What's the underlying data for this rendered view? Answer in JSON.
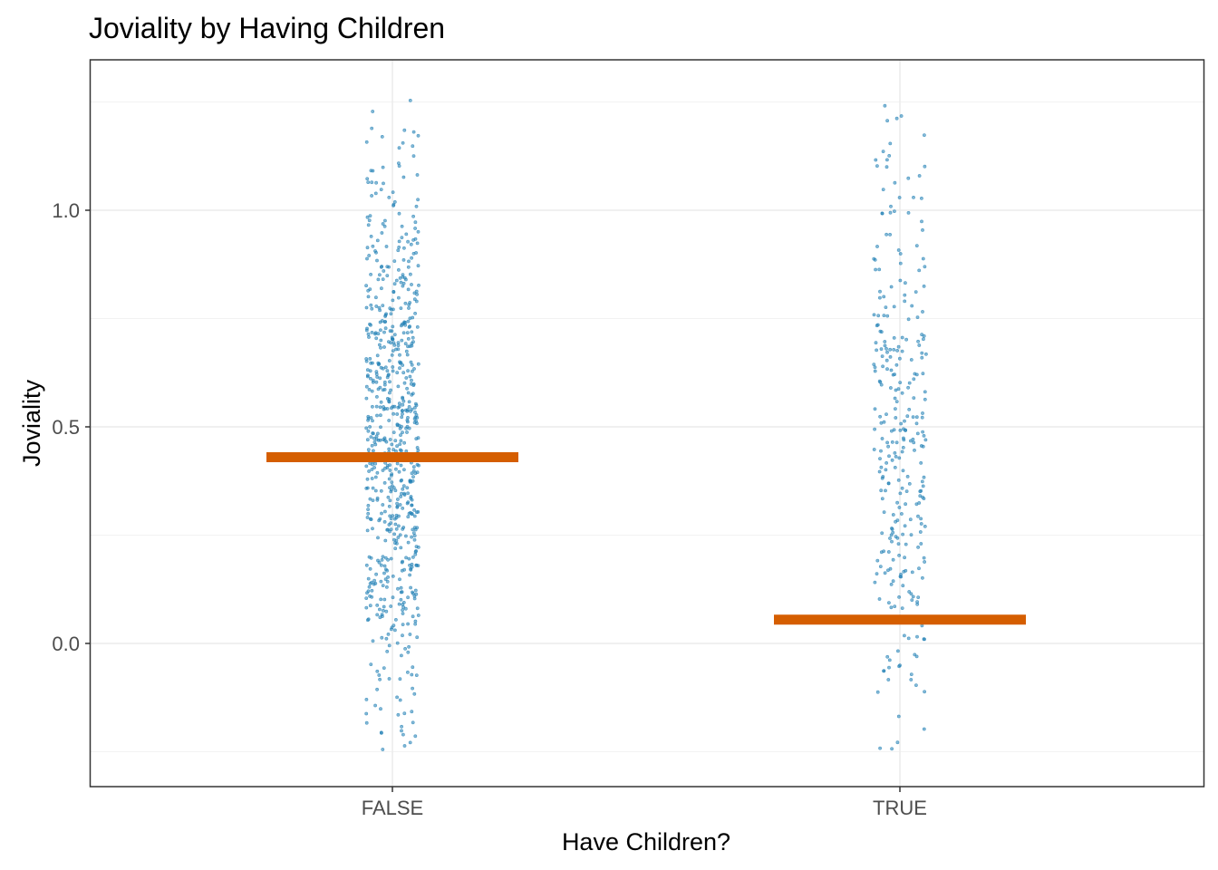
{
  "chart_data": {
    "type": "scatter",
    "title": "Joviality by Having Children",
    "xlabel": "Have Children?",
    "ylabel": "Joviality",
    "categories": [
      "FALSE",
      "TRUE"
    ],
    "ylim": [
      -0.26,
      1.29
    ],
    "y_ticks": [
      0.0,
      0.5,
      1.0
    ],
    "y_tick_labels": [
      "0.0",
      "0.5",
      "1.0"
    ],
    "grid": true,
    "points": {
      "FALSE": {
        "count": 700,
        "min": -0.25,
        "max": 1.27
      },
      "TRUE": {
        "count": 300,
        "min": -0.25,
        "max": 1.25
      }
    },
    "summary_lines": [
      {
        "category": "FALSE",
        "value": 0.43
      },
      {
        "category": "TRUE",
        "value": 0.055
      }
    ],
    "colors": {
      "points": "#1f7fb5",
      "summary": "#d55e00",
      "panel_border": "#333333",
      "grid": "#ebebeb"
    }
  }
}
